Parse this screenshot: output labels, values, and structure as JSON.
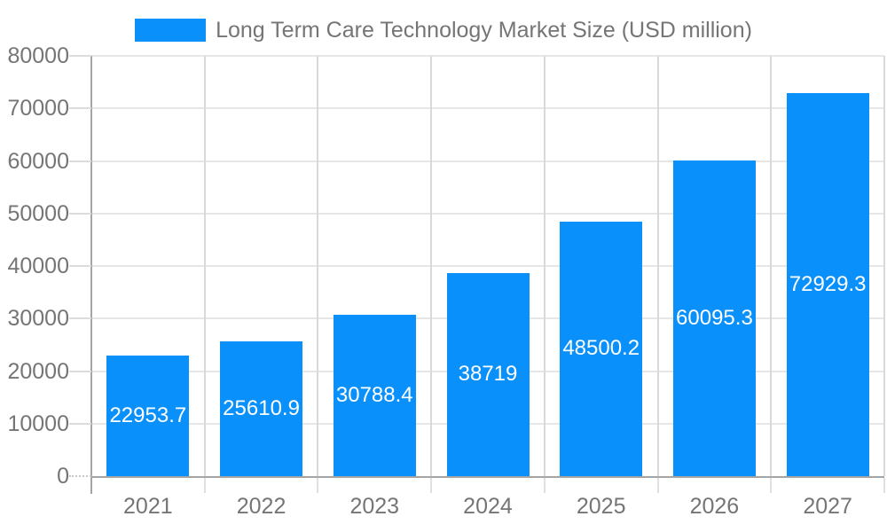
{
  "chart_data": {
    "type": "bar",
    "title": "Long Term Care Technology Market Size (USD million)",
    "categories": [
      "2021",
      "2022",
      "2023",
      "2024",
      "2025",
      "2026",
      "2027"
    ],
    "values": [
      22953.7,
      25610.9,
      30788.4,
      38719,
      48500.2,
      60095.3,
      72929.3
    ],
    "bar_labels": [
      "22953.7",
      "25610.9",
      "30788.4",
      "38719",
      "48500.2",
      "60095.3",
      "72929.3"
    ],
    "xlabel": "",
    "ylabel": "",
    "ylim": [
      0,
      80000
    ],
    "yticks": [
      0,
      10000,
      20000,
      30000,
      40000,
      50000,
      60000,
      70000,
      80000
    ],
    "ytick_labels": [
      "0",
      "10000",
      "20000",
      "30000",
      "40000",
      "50000",
      "60000",
      "70000",
      "80000"
    ],
    "grid": true,
    "legend_position": "top-center",
    "colors": {
      "bar": "#0a90fa",
      "bar_label_text": "#ffffff",
      "axis_text": "#757575",
      "axis_line": "#a5a5a5",
      "gridline_horizontal": "#e6e6e6",
      "gridline_vertical": "#d9d9d9",
      "background": "#ffffff"
    }
  }
}
